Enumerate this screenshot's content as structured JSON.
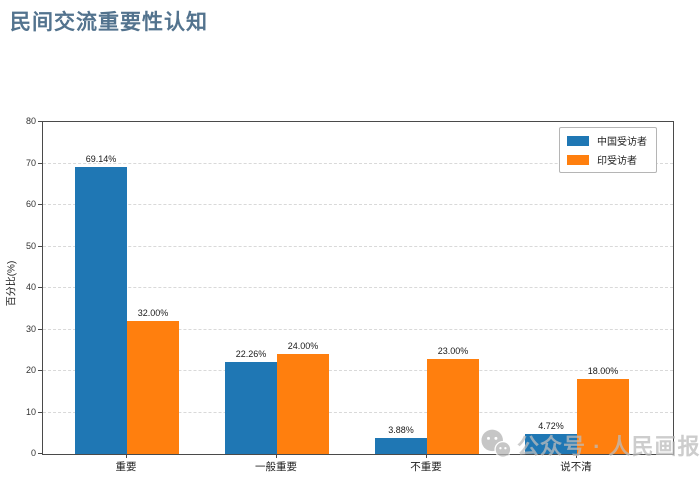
{
  "page": {
    "title": "民间交流重要性认知"
  },
  "chart_data": {
    "type": "bar",
    "title": "民间交流重要性认知",
    "categories": [
      "重要",
      "一般重要",
      "不重要",
      "说不清"
    ],
    "series": [
      {
        "name": "中国受访者",
        "color": "#1f77b4",
        "values": [
          69.14,
          22.26,
          3.88,
          4.72
        ],
        "labels": [
          "69.14%",
          "22.26%",
          "3.88%",
          "4.72%"
        ]
      },
      {
        "name": "印受访者",
        "color": "#ff7f0e",
        "values": [
          32.0,
          24.0,
          23.0,
          18.0
        ],
        "labels": [
          "32.00%",
          "24.00%",
          "23.00%",
          "18.00%"
        ]
      }
    ],
    "xlabel": "",
    "ylabel": "百分比(%)",
    "ylim": [
      0,
      80
    ],
    "yticks": [
      0,
      10,
      20,
      30,
      40,
      50,
      60,
      70,
      80
    ],
    "grid": "horizontal-dashed",
    "legend_position": "top-right-inside"
  },
  "watermark": {
    "text": "公众号 · 人民画报",
    "icon": "wechat-icon"
  }
}
